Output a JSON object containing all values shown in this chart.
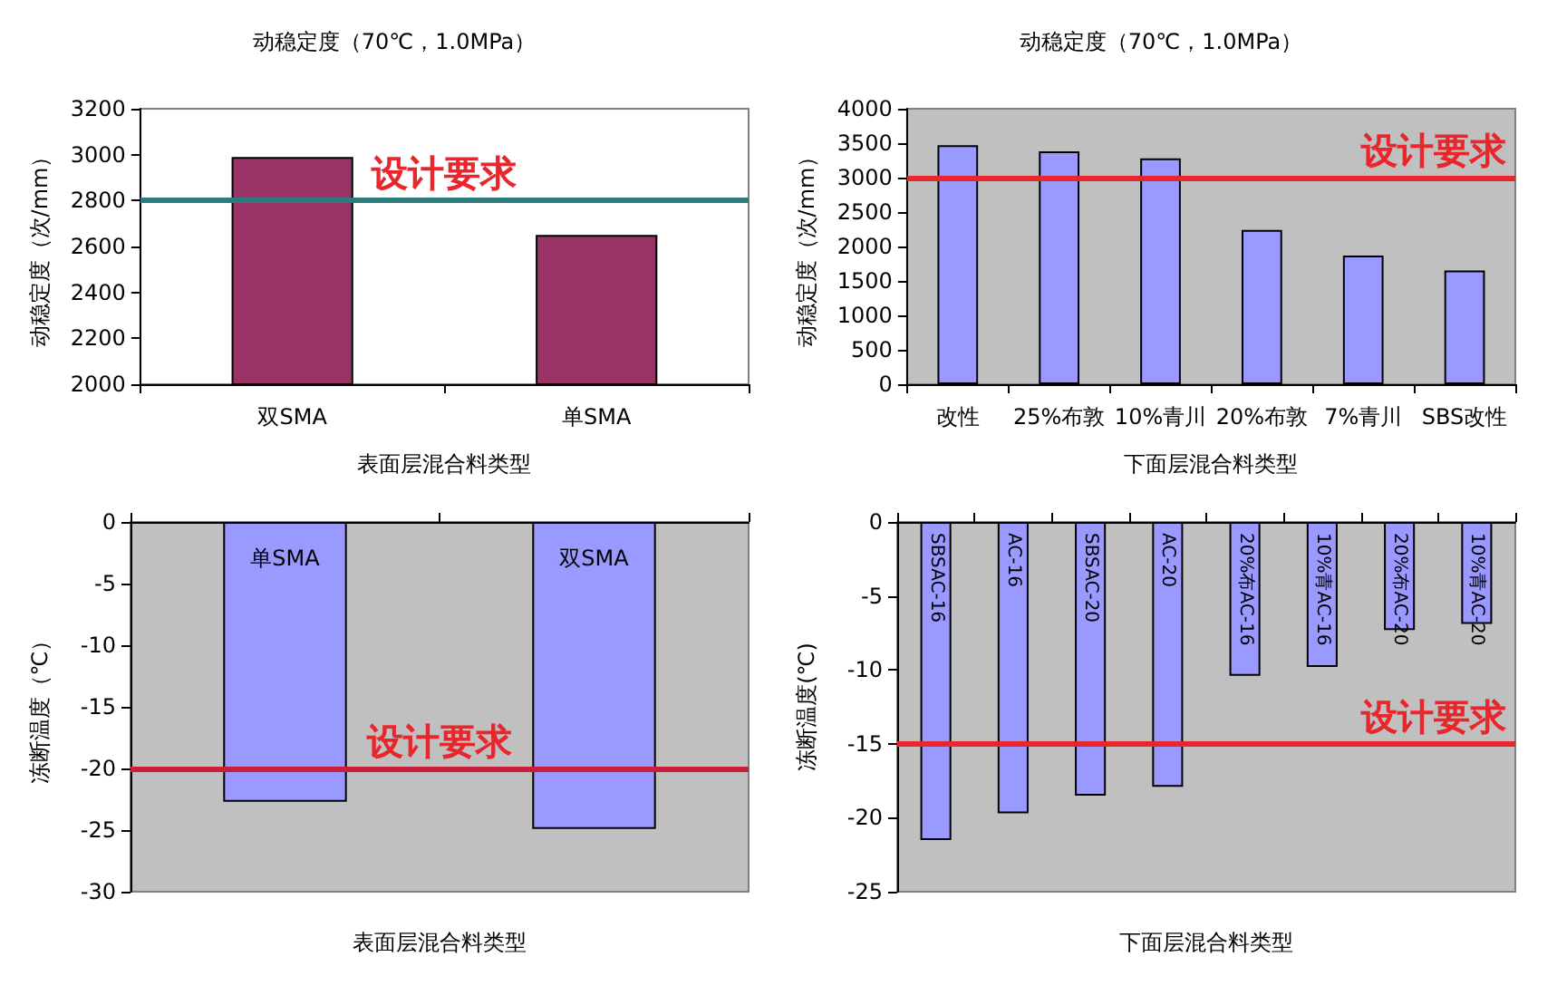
{
  "chart_data": [
    {
      "type": "bar",
      "title": "动稳定度（70℃，1.0MPa）",
      "xlabel": "表面层混合料类型",
      "ylabel": "动稳定度（次/mm）",
      "categories": [
        "双SMA",
        "单SMA"
      ],
      "values": [
        2990,
        2650
      ],
      "color": "#993366",
      "ylim": [
        2000,
        3200
      ],
      "yticks": [
        2000,
        2200,
        2400,
        2600,
        2800,
        3000,
        3200
      ],
      "grid": false,
      "ref_lines": [
        {
          "axis": "y",
          "value": 2800,
          "label": "设计要求",
          "color": "#2e7b7b"
        }
      ]
    },
    {
      "type": "bar",
      "title": "动稳定度（70℃，1.0MPa）",
      "xlabel": "下面层混合料类型",
      "ylabel": "动稳定度（次/mm）",
      "categories": [
        "改性",
        "25%布敦",
        "10%青川",
        "20%布敦",
        "7%青川",
        "SBS改性"
      ],
      "values": [
        3470,
        3380,
        3280,
        2240,
        1870,
        1650
      ],
      "color": "#9999ff",
      "ylim": [
        0,
        4000
      ],
      "yticks": [
        0,
        500,
        1000,
        1500,
        2000,
        2500,
        3000,
        3500,
        4000
      ],
      "grid": false,
      "ref_lines": [
        {
          "axis": "y",
          "value": 3000,
          "label": "设计要求",
          "color": "#e8262c"
        }
      ]
    },
    {
      "type": "bar",
      "xlabel": "表面层混合料类型",
      "ylabel": "冻断温度（℃）",
      "categories": [
        "单SMA",
        "双SMA"
      ],
      "values": [
        -22.7,
        -24.9
      ],
      "color": "#9999ff",
      "ylim": [
        -30,
        0
      ],
      "yticks": [
        -30,
        -25,
        -20,
        -15,
        -10,
        -5,
        0
      ],
      "grid": false,
      "ref_lines": [
        {
          "axis": "y",
          "value": -20,
          "label": "设计要求",
          "color": "#c8203a"
        }
      ]
    },
    {
      "type": "bar",
      "xlabel": "下面层混合料类型",
      "ylabel": "冻断温度(℃)",
      "categories": [
        "SBSAC-16",
        "AC-16",
        "SBSAC-20",
        "AC-20",
        "20%布AC-16",
        "10%青AC-16",
        "20%布AC-20",
        "10%青AC-20"
      ],
      "values": [
        -21.5,
        -19.7,
        -18.5,
        -17.9,
        -10.4,
        -9.8,
        -7.3,
        -6.9
      ],
      "color": "#9999ff",
      "ylim": [
        -25,
        0
      ],
      "yticks": [
        -25,
        -20,
        -15,
        -10,
        -5,
        0
      ],
      "grid": false,
      "ref_lines": [
        {
          "axis": "y",
          "value": -15,
          "label": "设计要求",
          "color": "#e8262c"
        }
      ]
    }
  ]
}
